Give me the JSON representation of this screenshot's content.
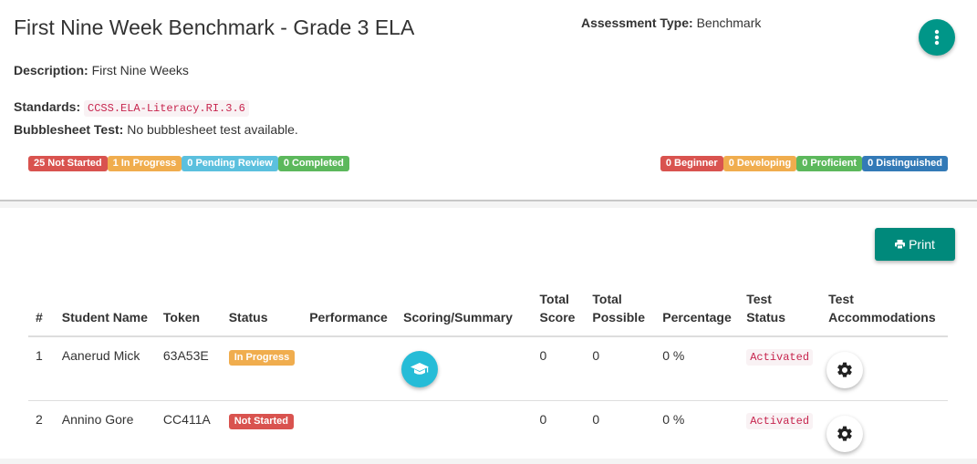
{
  "header": {
    "title": "First Nine Week Benchmark - Grade 3 ELA",
    "assessment_type_label": "Assessment Type:",
    "assessment_type_value": "Benchmark",
    "description_label": "Description:",
    "description_value": "First Nine Weeks",
    "standards_label": "Standards:",
    "standards_value": "CCSS.ELA-Literacy.RI.3.6",
    "bubblesheet_label": "Bubblesheet Test:",
    "bubblesheet_value": "No bubblesheet test available.",
    "menu_icon": "more-vertical-icon"
  },
  "status_badges": [
    {
      "label": "25 Not Started",
      "color": "#d9534f"
    },
    {
      "label": "1 In Progress",
      "color": "#f0ad4e"
    },
    {
      "label": "0 Pending Review",
      "color": "#5bc0de"
    },
    {
      "label": "0 Completed",
      "color": "#5cb85c"
    }
  ],
  "performance_badges": [
    {
      "label": "0 Beginner",
      "color": "#d9534f"
    },
    {
      "label": "0 Developing",
      "color": "#f0ad4e"
    },
    {
      "label": "0 Proficient",
      "color": "#5cb85c"
    },
    {
      "label": "0 Distinguished",
      "color": "#337ab7"
    }
  ],
  "toolbar": {
    "print_label": "Print",
    "print_icon": "print-icon"
  },
  "table": {
    "headers": {
      "num": "#",
      "student_name": "Student Name",
      "token": "Token",
      "status": "Status",
      "performance": "Performance",
      "scoring": "Scoring/Summary",
      "total_score_1": "Total",
      "total_score_2": "Score",
      "total_possible_1": "Total",
      "total_possible_2": "Possible",
      "percentage": "Percentage",
      "test_status_1": "Test",
      "test_status_2": "Status",
      "test_accom_1": "Test",
      "test_accom_2": "Accommodations"
    },
    "rows": [
      {
        "num": "1",
        "name": "Aanerud Mick",
        "token": "63A53E",
        "status": "In Progress",
        "status_color": "#f0ad4e",
        "performance": "",
        "score": "0",
        "possible": "0",
        "percentage": "0 %",
        "test_status": "Activated",
        "scoring_icon": "graduation-cap-icon",
        "accom_icon": "gear-icon"
      },
      {
        "num": "2",
        "name": "Annino Gore",
        "token": "CC411A",
        "status": "Not Started",
        "status_color": "#d9534f",
        "performance": "",
        "score": "0",
        "possible": "0",
        "percentage": "0 %",
        "test_status": "Activated",
        "accom_icon": "gear-icon"
      }
    ]
  }
}
